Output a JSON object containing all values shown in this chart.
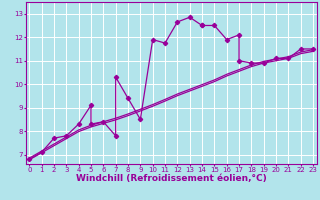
{
  "xlabel": "Windchill (Refroidissement éolien,°C)",
  "background_color": "#b2e4eb",
  "line_color": "#990099",
  "grid_color": "#ffffff",
  "x_ticks": [
    0,
    1,
    2,
    3,
    4,
    5,
    6,
    7,
    8,
    9,
    10,
    11,
    12,
    13,
    14,
    15,
    16,
    17,
    18,
    19,
    20,
    21,
    22,
    23
  ],
  "y_ticks": [
    7,
    8,
    9,
    10,
    11,
    12,
    13
  ],
  "xlim": [
    -0.3,
    23.3
  ],
  "ylim": [
    6.6,
    13.5
  ],
  "main_x": [
    0,
    1,
    2,
    3,
    4,
    5,
    5,
    6,
    7,
    7,
    8,
    9,
    10,
    11,
    12,
    13,
    14,
    14,
    15,
    16,
    17,
    17,
    18,
    19,
    20,
    21,
    22,
    23
  ],
  "main_y": [
    6.8,
    7.1,
    7.7,
    7.8,
    8.3,
    9.1,
    8.3,
    8.4,
    7.8,
    10.3,
    9.4,
    8.5,
    11.9,
    11.75,
    12.65,
    12.85,
    12.5,
    12.5,
    12.5,
    11.9,
    12.1,
    11.0,
    10.9,
    10.9,
    11.1,
    11.1,
    11.5,
    11.5
  ],
  "band1_x": [
    0,
    1,
    2,
    3,
    4,
    5,
    6,
    7,
    8,
    9,
    10,
    11,
    12,
    13,
    14,
    15,
    16,
    17,
    18,
    19,
    20,
    21,
    22,
    23
  ],
  "band1_y": [
    6.85,
    7.15,
    7.45,
    7.75,
    8.05,
    8.25,
    8.4,
    8.55,
    8.73,
    8.93,
    9.13,
    9.35,
    9.58,
    9.78,
    9.98,
    10.18,
    10.42,
    10.62,
    10.82,
    10.97,
    11.07,
    11.17,
    11.37,
    11.47
  ],
  "band2_x": [
    0,
    1,
    2,
    3,
    4,
    5,
    6,
    7,
    8,
    9,
    10,
    11,
    12,
    13,
    14,
    15,
    16,
    17,
    18,
    19,
    20,
    21,
    22,
    23
  ],
  "band2_y": [
    6.78,
    7.08,
    7.38,
    7.68,
    7.98,
    8.18,
    8.33,
    8.48,
    8.66,
    8.86,
    9.06,
    9.28,
    9.51,
    9.71,
    9.91,
    10.11,
    10.35,
    10.55,
    10.75,
    10.9,
    11.0,
    11.1,
    11.3,
    11.4
  ],
  "marker": "D",
  "markersize": 2.2,
  "linewidth": 0.9,
  "tick_fontsize": 5.0,
  "label_fontsize": 6.5
}
